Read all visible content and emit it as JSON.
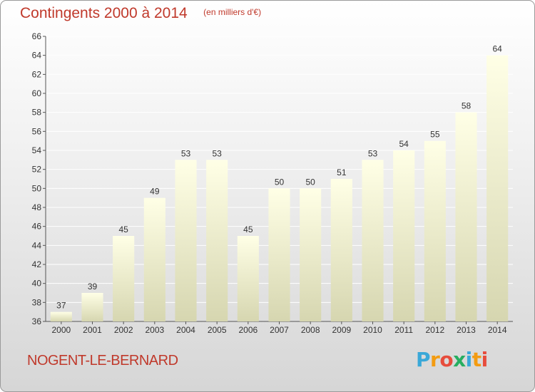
{
  "title": "Contingents 2000 à 2014",
  "subtitle": "(en milliers d'€)",
  "commune": "NOGENT-LE-BERNARD",
  "logo": {
    "letters": [
      "P",
      "r",
      "o",
      "x",
      "i",
      "t",
      "i"
    ],
    "colors": [
      "#3aa8d8",
      "#f39c12",
      "#e74c3c",
      "#27ae60",
      "#3aa8d8",
      "#f39c12",
      "#e74c3c"
    ]
  },
  "colors": {
    "title": "#c0392b",
    "bar_top": "#ffffe6",
    "bar_bottom": "#d6d6b0",
    "grid": "#ffffff"
  },
  "chart_data": {
    "type": "bar",
    "categories": [
      "2000",
      "2001",
      "2002",
      "2003",
      "2004",
      "2005",
      "2006",
      "2007",
      "2008",
      "2009",
      "2010",
      "2011",
      "2012",
      "2013",
      "2014"
    ],
    "values": [
      37,
      39,
      45,
      49,
      53,
      53,
      45,
      50,
      50,
      51,
      53,
      54,
      55,
      58,
      64
    ],
    "ylim": [
      36,
      66
    ],
    "yticks": [
      36,
      38,
      40,
      42,
      44,
      46,
      48,
      50,
      52,
      54,
      56,
      58,
      60,
      62,
      64,
      66
    ],
    "grid": true,
    "data_labels": true
  }
}
